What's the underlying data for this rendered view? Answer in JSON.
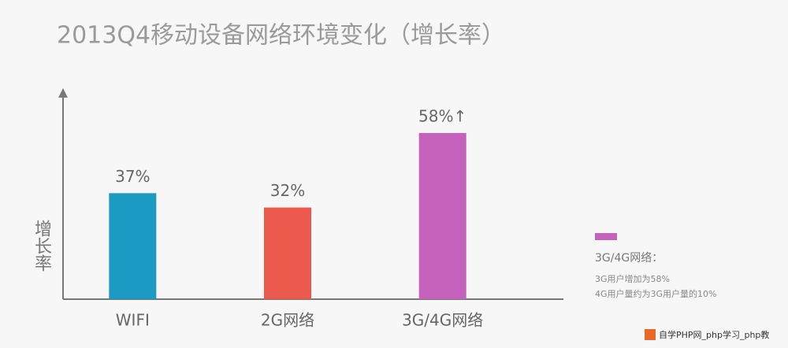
{
  "chart_data": {
    "type": "bar",
    "title": "2013Q4移动设备网络环境变化（增长率）",
    "y_label": "增长率",
    "categories": [
      "WIFI",
      "2G网络",
      "3G/4G网络"
    ],
    "values": [
      37,
      32,
      58
    ],
    "value_labels": [
      "37%",
      "32%",
      "58%↑"
    ],
    "colors": [
      "#1b9ac4",
      "#ec5a4e",
      "#c462bc"
    ],
    "ylim": [
      0,
      72
    ],
    "legend": {
      "color": "#c462bc",
      "title": "3G/4G网络：",
      "notes": [
        "3G用户增加为58%",
        "4G用户量约为3G用户量的10%"
      ]
    }
  },
  "watermark": "自学PHP网_php学习_php教"
}
